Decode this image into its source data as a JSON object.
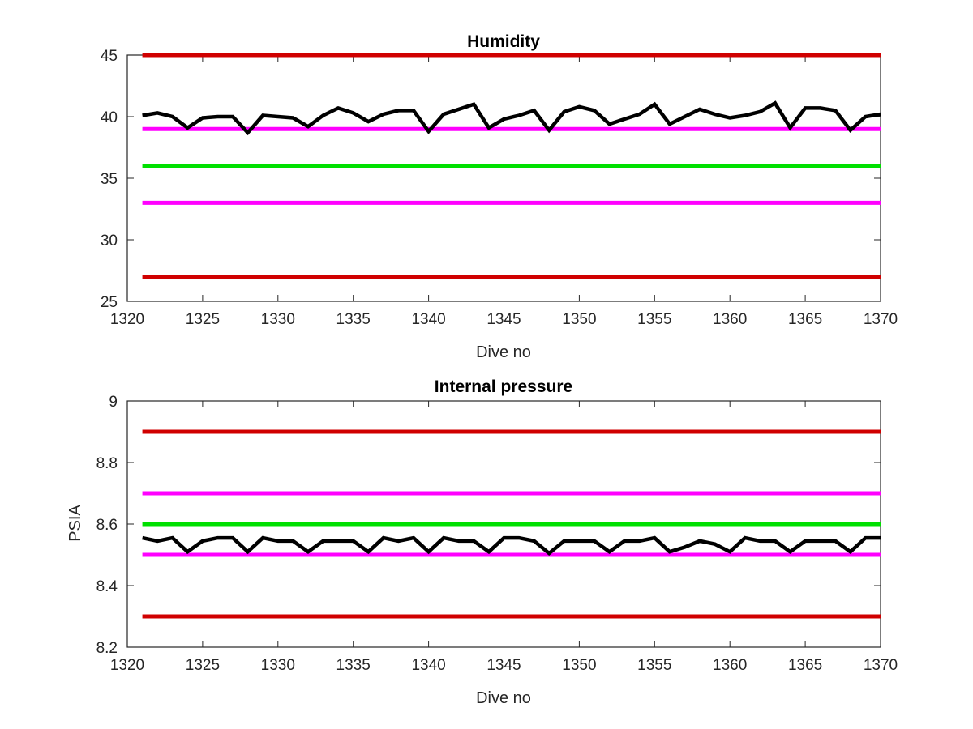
{
  "chart_data": [
    {
      "type": "line",
      "title": "Humidity",
      "xlabel": "Dive no",
      "ylabel": "",
      "xlim": [
        1320,
        1370
      ],
      "ylim": [
        25,
        45
      ],
      "xticks": [
        1320,
        1325,
        1330,
        1335,
        1340,
        1345,
        1350,
        1355,
        1360,
        1365,
        1370
      ],
      "yticks": [
        25,
        30,
        35,
        40,
        45
      ],
      "grid": false,
      "reference_lines": [
        {
          "y": 45,
          "color": "#d00000"
        },
        {
          "y": 39,
          "color": "#ff00ff"
        },
        {
          "y": 36,
          "color": "#00e000"
        },
        {
          "y": 33,
          "color": "#ff00ff"
        },
        {
          "y": 27,
          "color": "#d00000"
        }
      ],
      "series": [
        {
          "color": "#000000",
          "x": [
            1321,
            1322,
            1323,
            1324,
            1325,
            1326,
            1327,
            1328,
            1329,
            1330,
            1331,
            1332,
            1333,
            1334,
            1335,
            1336,
            1337,
            1338,
            1339,
            1340,
            1341,
            1342,
            1343,
            1344,
            1345,
            1346,
            1347,
            1348,
            1349,
            1350,
            1351,
            1352,
            1353,
            1354,
            1355,
            1356,
            1357,
            1358,
            1359,
            1360,
            1361,
            1362,
            1363,
            1364,
            1365,
            1366,
            1367,
            1368,
            1369,
            1370
          ],
          "y": [
            40.1,
            40.3,
            40.0,
            39.1,
            39.9,
            40.0,
            40.0,
            38.7,
            40.1,
            40.0,
            39.9,
            39.2,
            40.1,
            40.7,
            40.3,
            39.6,
            40.2,
            40.5,
            40.5,
            38.8,
            40.2,
            40.6,
            41.0,
            39.1,
            39.8,
            40.1,
            40.5,
            38.9,
            40.4,
            40.8,
            40.5,
            39.4,
            39.8,
            40.2,
            41.0,
            39.4,
            40.0,
            40.6,
            40.2,
            39.9,
            40.1,
            40.4,
            41.1,
            39.1,
            40.7,
            40.7,
            40.5,
            38.9,
            40.0,
            40.2
          ]
        }
      ]
    },
    {
      "type": "line",
      "title": "Internal pressure",
      "xlabel": "Dive no",
      "ylabel": "PSIA",
      "xlim": [
        1320,
        1370
      ],
      "ylim": [
        8.2,
        9.0
      ],
      "xticks": [
        1320,
        1325,
        1330,
        1335,
        1340,
        1345,
        1350,
        1355,
        1360,
        1365,
        1370
      ],
      "yticks": [
        8.2,
        8.4,
        8.6,
        8.8,
        9.0
      ],
      "yticklabels": [
        "8.2",
        "8.4",
        "8.6",
        "8.8",
        "9"
      ],
      "grid": false,
      "reference_lines": [
        {
          "y": 8.9,
          "color": "#d00000"
        },
        {
          "y": 8.7,
          "color": "#ff00ff"
        },
        {
          "y": 8.6,
          "color": "#00e000"
        },
        {
          "y": 8.5,
          "color": "#ff00ff"
        },
        {
          "y": 8.3,
          "color": "#d00000"
        }
      ],
      "series": [
        {
          "color": "#000000",
          "x": [
            1321,
            1322,
            1323,
            1324,
            1325,
            1326,
            1327,
            1328,
            1329,
            1330,
            1331,
            1332,
            1333,
            1334,
            1335,
            1336,
            1337,
            1338,
            1339,
            1340,
            1341,
            1342,
            1343,
            1344,
            1345,
            1346,
            1347,
            1348,
            1349,
            1350,
            1351,
            1352,
            1353,
            1354,
            1355,
            1356,
            1357,
            1358,
            1359,
            1360,
            1361,
            1362,
            1363,
            1364,
            1365,
            1366,
            1367,
            1368,
            1369,
            1370
          ],
          "y": [
            8.555,
            8.545,
            8.555,
            8.51,
            8.545,
            8.555,
            8.555,
            8.51,
            8.555,
            8.545,
            8.545,
            8.51,
            8.545,
            8.545,
            8.545,
            8.51,
            8.555,
            8.545,
            8.555,
            8.51,
            8.555,
            8.545,
            8.545,
            8.51,
            8.555,
            8.555,
            8.545,
            8.505,
            8.545,
            8.545,
            8.545,
            8.51,
            8.545,
            8.545,
            8.555,
            8.51,
            8.525,
            8.545,
            8.535,
            8.51,
            8.555,
            8.545,
            8.545,
            8.51,
            8.545,
            8.545,
            8.545,
            8.51,
            8.555,
            8.555
          ]
        }
      ]
    }
  ]
}
